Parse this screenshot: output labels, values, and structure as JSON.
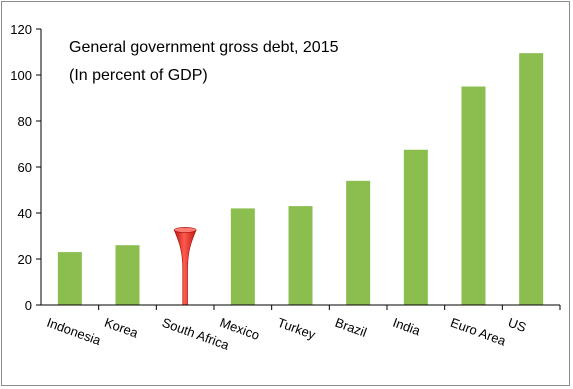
{
  "chart_data": {
    "type": "bar",
    "title": "General government gross debt, 2015",
    "subtitle": "(In percent of GDP)",
    "xlabel": "",
    "ylabel": "",
    "ylim": [
      0,
      120
    ],
    "yticks": [
      0,
      20,
      40,
      60,
      80,
      100,
      120
    ],
    "grid": false,
    "categories": [
      "Indonesia",
      "Korea",
      "South Africa",
      "Mexico",
      "Turkey",
      "Brazil",
      "India",
      "Euro Area",
      "US"
    ],
    "values": [
      23,
      26,
      33.5,
      42,
      43,
      54,
      67.5,
      95,
      109.5
    ],
    "highlight_category": "South Africa",
    "highlight_style": "red-funnel",
    "colors": {
      "bar": "#8bbd4f",
      "highlight": "#e8261f",
      "axis": "#000000"
    }
  }
}
